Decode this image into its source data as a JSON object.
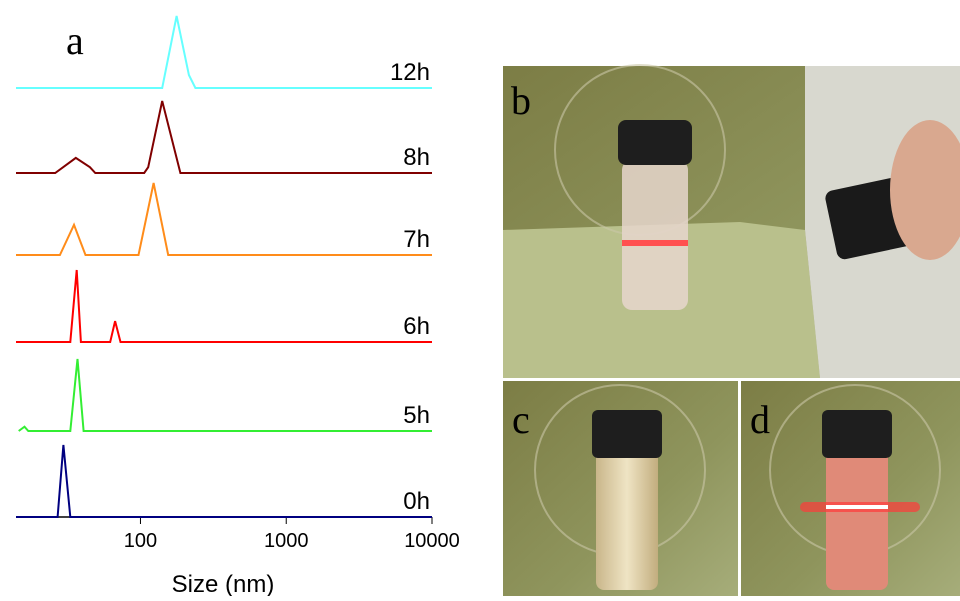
{
  "chart_data": {
    "type": "line",
    "panel_label": "a",
    "xlabel": "Size (nm)",
    "xscale": "log",
    "xlim": [
      14,
      10000
    ],
    "xticks": [
      100,
      1000,
      10000
    ],
    "ylim": [
      0,
      100
    ],
    "series": [
      {
        "name": "12h",
        "color": "#66ffff",
        "x": [
          14,
          141,
          177,
          215,
          238,
          10000
        ],
        "values": [
          0,
          0,
          100,
          18,
          0,
          0
        ]
      },
      {
        "name": "8h",
        "color": "#800000",
        "x": [
          14,
          26,
          36,
          45,
          49,
          106,
          113,
          141,
          188,
          10000
        ],
        "values": [
          0,
          0,
          21,
          8,
          0,
          0,
          8,
          100,
          0,
          0
        ]
      },
      {
        "name": "7h",
        "color": "#ff8c1a",
        "x": [
          14,
          28,
          35,
          42,
          97,
          123,
          155,
          10000
        ],
        "values": [
          0,
          0,
          42,
          0,
          0,
          100,
          0,
          0
        ]
      },
      {
        "name": "6h",
        "color": "#ff0000",
        "x": [
          14,
          33,
          36.5,
          39,
          62,
          67,
          73,
          10000
        ],
        "values": [
          0,
          0,
          100,
          0,
          0,
          29,
          0,
          0
        ]
      },
      {
        "name": "5h",
        "color": "#33ee33",
        "x": [
          14.6,
          16,
          17,
          33,
          37,
          40.7,
          10000
        ],
        "values": [
          0,
          6,
          0,
          0,
          100,
          0,
          0
        ]
      },
      {
        "name": "0h",
        "color": "#000080",
        "x": [
          14,
          27,
          29.6,
          33,
          10000
        ],
        "values": [
          0,
          0,
          100,
          0,
          0
        ]
      }
    ]
  },
  "photos": {
    "labels": [
      "b",
      "c",
      "d"
    ]
  }
}
